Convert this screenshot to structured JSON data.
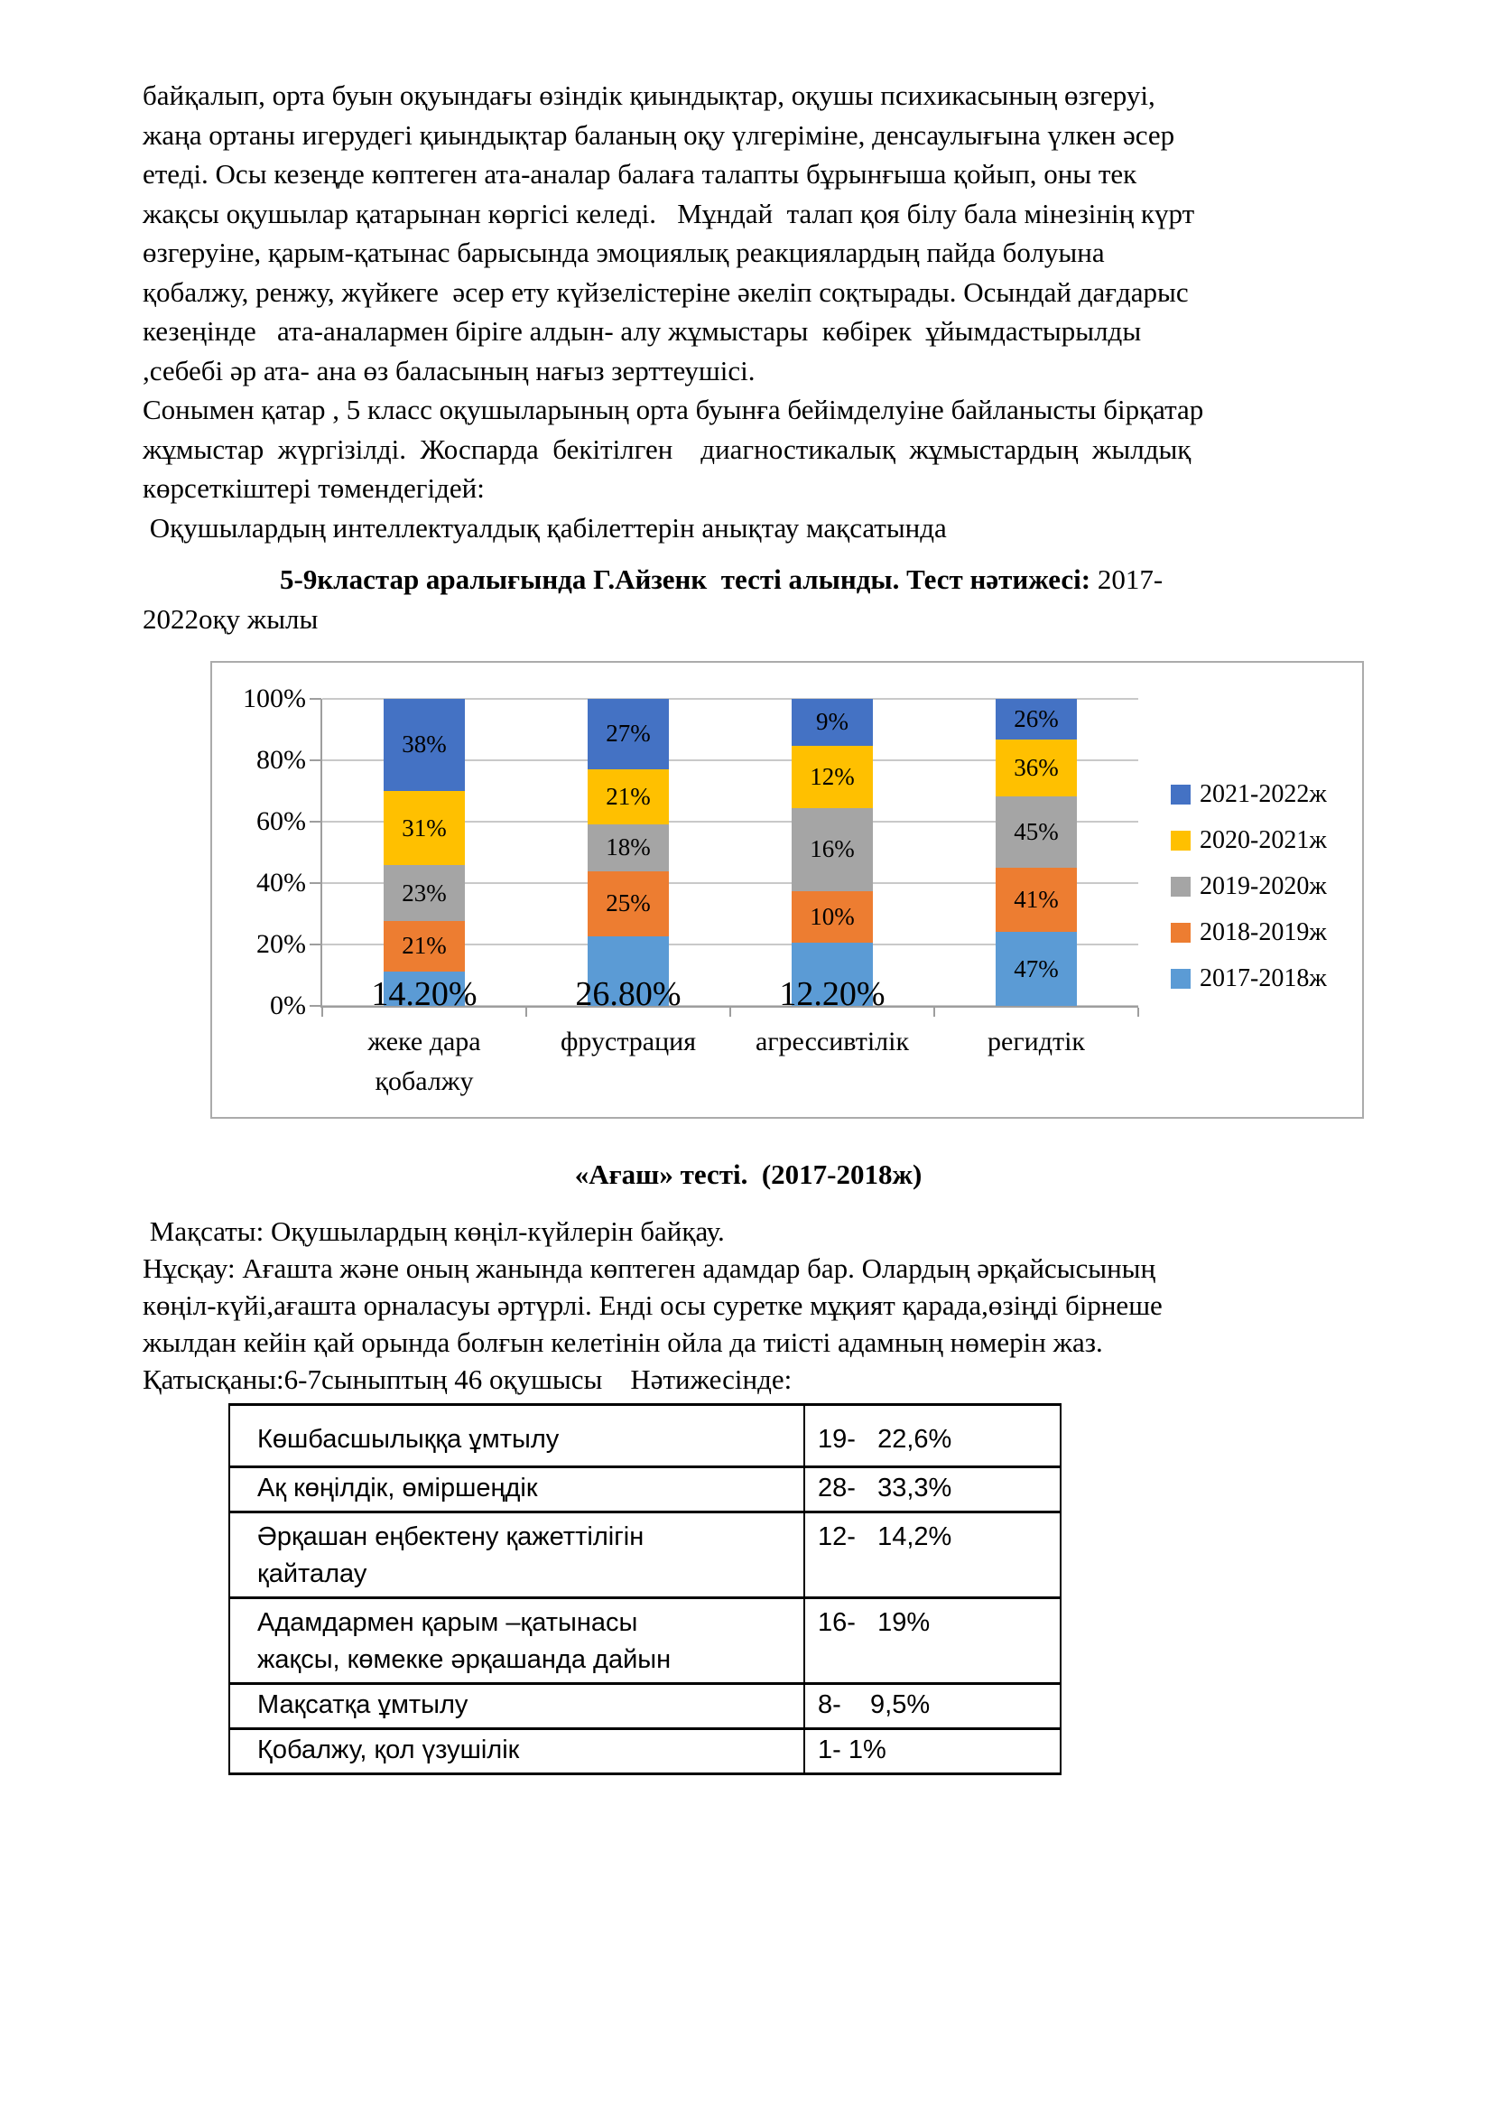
{
  "intro": {
    "lines": [
      "байқалып, орта буын оқуындағы өзіндік қиындықтар, оқушы психикасының өзгеруі,",
      "жаңа ортаны игерудегі қиындықтар баланың оқу үлгеріміне, денсаулығына үлкен әсер",
      "етеді. Осы кезеңде көптеген ата-аналар балаға талапты бұрынғыша қойып, оны тек",
      "жақсы оқушылар қатарынан көргісі келеді.   Мұндай  талап қоя білу бала мінезінің күрт",
      "өзгеруіне, қарым-қатынас барысында эмоциялық реакциялардың пайда болуына",
      "қобалжу, ренжу, жүйкеге  әсер ету күйзелістеріне әкеліп соқтырады. Осындай дағдарыс",
      "кезеңінде   ата-аналармен біріге алдын- алу жұмыстары  көбірек  ұйымдастырылды",
      ",себебі әр ата- ана өз баласының нағыз зерттеушісі.",
      "Сонымен қатар , 5 класс оқушыларының орта буынға бейімделуіне байланысты бірқатар",
      "жұмыстар  жүргізілді.  Жоспарда  бекітілген    диагностикалық  жұмыстардың  жылдық",
      "көрсеткіштері төмендегідей:",
      " Оқушылардың интеллектуалдық қабілеттерін анықтау мақсатында"
    ]
  },
  "chart_heading": {
    "bold": "5-9кластар аралығында Г.Айзенк  тесті алынды. Тест нәтижесі:",
    "tail": " 2017-",
    "line2": "2022оқу жылы"
  },
  "chart_data": {
    "type": "bar",
    "subtype": "stacked-100-percent-column",
    "title": "5-9кластар аралығында Г.Айзенк тесті алынды. Тест нәтижесі: 2017-2022оқу жылы",
    "categories": [
      "жеке дара қобалжу",
      "фрустрация",
      "агрессивтілік",
      "регидтік"
    ],
    "series": [
      {
        "name": "2017-2018ж",
        "color": "#5B9BD5",
        "values": [
          14.2,
          26.8,
          12.2,
          47
        ],
        "labels": [
          "14.20%",
          "26.80%",
          "12.20%",
          "47%"
        ],
        "big": [
          true,
          true,
          true,
          false
        ]
      },
      {
        "name": "2018-2019ж",
        "color": "#ED7D31",
        "values": [
          21,
          25,
          10,
          41
        ],
        "labels": [
          "21%",
          "25%",
          "10%",
          "41%"
        ],
        "big": [
          false,
          false,
          false,
          false
        ]
      },
      {
        "name": "2019-2020ж",
        "color": "#A5A5A5",
        "values": [
          23,
          18,
          16,
          45
        ],
        "labels": [
          "23%",
          "18%",
          "16%",
          "45%"
        ],
        "big": [
          false,
          false,
          false,
          false
        ]
      },
      {
        "name": "2020-2021ж",
        "color": "#FFC000",
        "values": [
          31,
          21,
          12,
          36
        ],
        "labels": [
          "31%",
          "21%",
          "12%",
          "36%"
        ],
        "big": [
          false,
          false,
          false,
          false
        ]
      },
      {
        "name": "2021-2022ж",
        "color": "#4472C4",
        "values": [
          38,
          27,
          9,
          26
        ],
        "labels": [
          "38%",
          "27%",
          "9%",
          "26%"
        ],
        "big": [
          false,
          false,
          false,
          false
        ]
      }
    ],
    "y_ticks": [
      "0%",
      "20%",
      "40%",
      "60%",
      "80%",
      "100%"
    ],
    "ylim": [
      0,
      100
    ],
    "grid": true,
    "legend_position": "right",
    "legend_order": [
      "2021-2022ж",
      "2020-2021ж",
      "2019-2020ж",
      "2018-2019ж",
      "2017-2018ж"
    ],
    "colors": {
      "axis": "#9E9E9E",
      "gridline": "#C9C9C9",
      "frame_border": "#ABABAB"
    }
  },
  "tree": {
    "heading": "«Ағаш» тесті.  (2017-2018ж)",
    "lines": [
      " Мақсаты: Оқушылардың көңіл-күйлерін байқау.",
      "Нұсқау: Ағашта және оның жанында көптеген адамдар бар. Олардың әрқайсысының",
      "көңіл-күйі,ағашта орналасуы әртүрлі. Енді осы суретке мұқият қарада,өзіңді бірнеше",
      "жылдан кейін қай орында болғын келетінін ойла да тиісті адамның нөмерін жаз.",
      "Қатысқаны:6-7сыныптың 46 оқушысы    Нәтижесінде:"
    ]
  },
  "table": {
    "rows": [
      {
        "label": "Көшбасшылыққа ұмтылу",
        "value": "19-   22,6%"
      },
      {
        "label": "Ақ көңілдік, өміршеңдік",
        "value": "28-   33,3%"
      },
      {
        "label": "Әрқашан еңбектену қажеттілігін\nқайталау",
        "value": "12-   14,2%"
      },
      {
        "label": "Адамдармен қарым –қатынасы\nжақсы, көмекке әрқашанда дайын",
        "value": "16-   19%"
      },
      {
        "label": "Мақсатқа ұмтылу",
        "value": "8-    9,5%"
      },
      {
        "label": "Қобалжу, қол үзушілік",
        "value": "1- 1%"
      }
    ]
  }
}
